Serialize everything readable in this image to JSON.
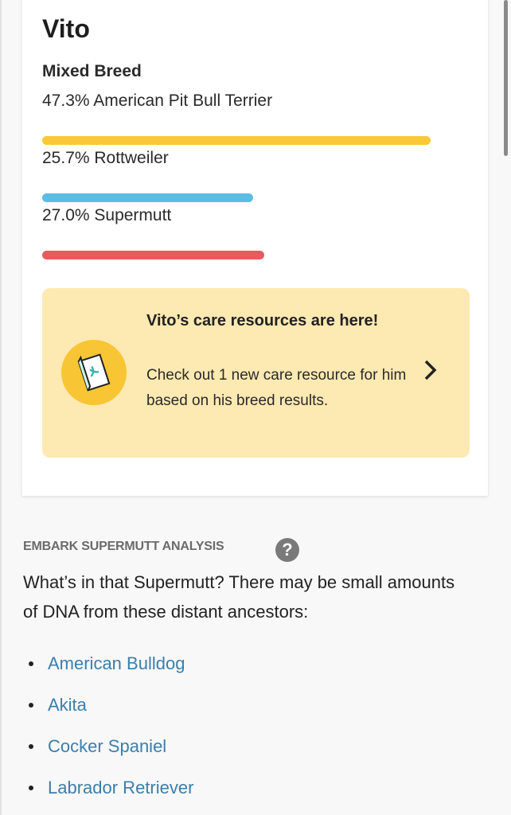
{
  "dog": {
    "name": "Vito",
    "breed_type": "Mixed Breed"
  },
  "breeds": [
    {
      "label": "47.3% American Pit Bull Terrier",
      "percent": 47.3,
      "color": "#f9c93a"
    },
    {
      "label": "25.7% Rottweiler",
      "percent": 25.7,
      "color": "#5bbde6"
    },
    {
      "label": "27.0% Supermutt",
      "percent": 27.0,
      "color": "#e95a5c"
    }
  ],
  "banner": {
    "title": "Vito’s care resources are here!",
    "text": "Check out 1 new care resource for him based on his breed results.",
    "icon": "care-booklet-icon",
    "chevron": "chevron-right-icon",
    "bg_color": "#fde9b2"
  },
  "supermutt": {
    "heading": "EMBARK SUPERMUTT ANALYSIS",
    "help_icon": "?",
    "intro": "What’s in that Supermutt? There may be small amounts of DNA from these distant ancestors:",
    "ancestors": [
      "American Bulldog",
      "Akita",
      "Cocker Spaniel",
      "Labrador Retriever"
    ]
  }
}
